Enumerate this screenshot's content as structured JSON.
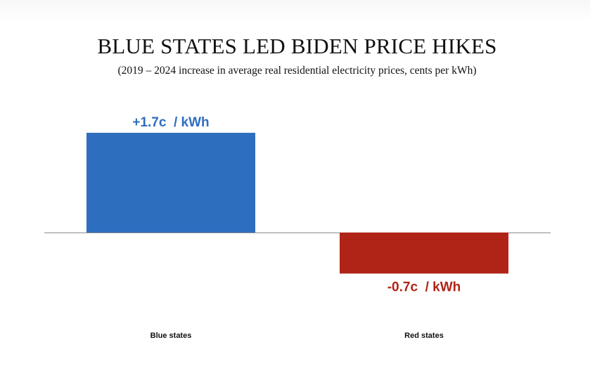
{
  "chart_data": {
    "type": "bar",
    "title": "BLUE STATES LED BIDEN PRICE HIKES",
    "subtitle": "(2019 – 2024 increase in average real residential electricity prices, cents per kWh)",
    "categories": [
      "Blue states",
      "Red states"
    ],
    "values": [
      1.7,
      -0.7
    ],
    "data_labels": [
      "+1.7c  / kWh",
      "-0.7c  / kWh"
    ],
    "colors": [
      "#2e6ebf",
      "#b02418"
    ],
    "xlabel": "",
    "ylabel": "",
    "ylim": [
      -0.7,
      1.7
    ],
    "grid": false,
    "legend": "none"
  }
}
